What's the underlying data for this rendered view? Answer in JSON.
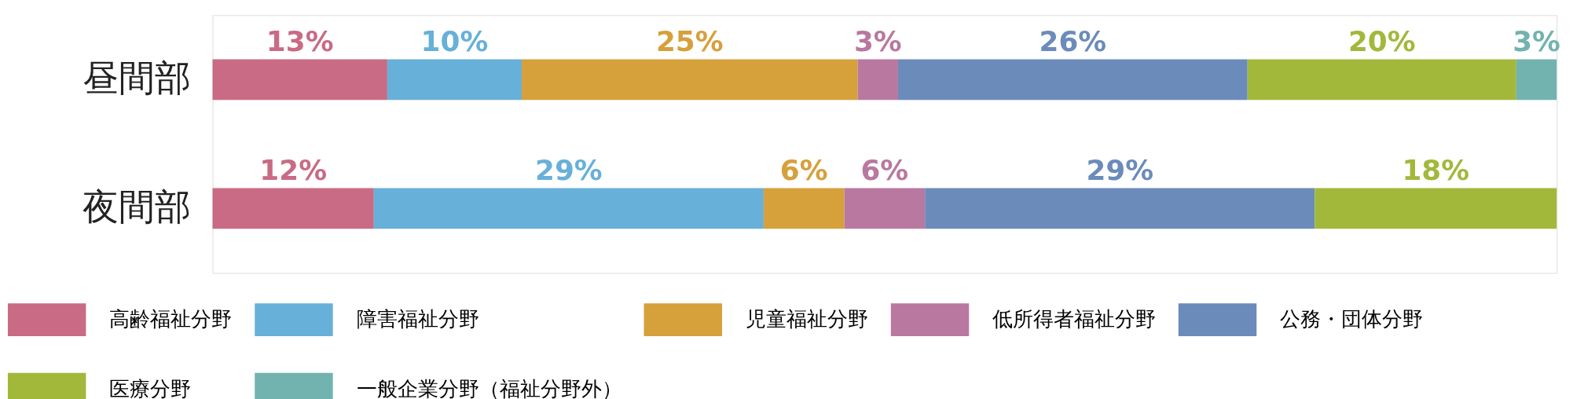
{
  "chart_data": {
    "type": "bar",
    "orientation": "horizontal",
    "stacked": true,
    "legend": "bottom",
    "categories": [
      "昼間部",
      "夜間部"
    ],
    "series": [
      {
        "name": "高齢福祉分野",
        "color": "#c96b84",
        "values": [
          13,
          12
        ],
        "value_labels": [
          "13%",
          "12%"
        ]
      },
      {
        "name": "障害福祉分野",
        "color": "#67b0d9",
        "values": [
          10,
          29
        ],
        "value_labels": [
          "10%",
          "29%"
        ]
      },
      {
        "name": "児童福祉分野",
        "color": "#d6a03b",
        "values": [
          25,
          6
        ],
        "value_labels": [
          "25%",
          "6%"
        ]
      },
      {
        "name": "低所得者福祉分野",
        "color": "#b9789f",
        "values": [
          3,
          6
        ],
        "value_labels": [
          "3%",
          "6%"
        ]
      },
      {
        "name": "公務・団体分野",
        "color": "#6b8bbb",
        "values": [
          26,
          29
        ],
        "value_labels": [
          "26%",
          "29%"
        ]
      },
      {
        "name": "医療分野",
        "color": "#a2b83b",
        "values": [
          20,
          18
        ],
        "value_labels": [
          "20%",
          "18%"
        ]
      },
      {
        "name": "一般企業分野（福祉分野外）",
        "color": "#72b3b0",
        "values": [
          3,
          null
        ],
        "value_labels": [
          "3%",
          null
        ]
      }
    ]
  }
}
